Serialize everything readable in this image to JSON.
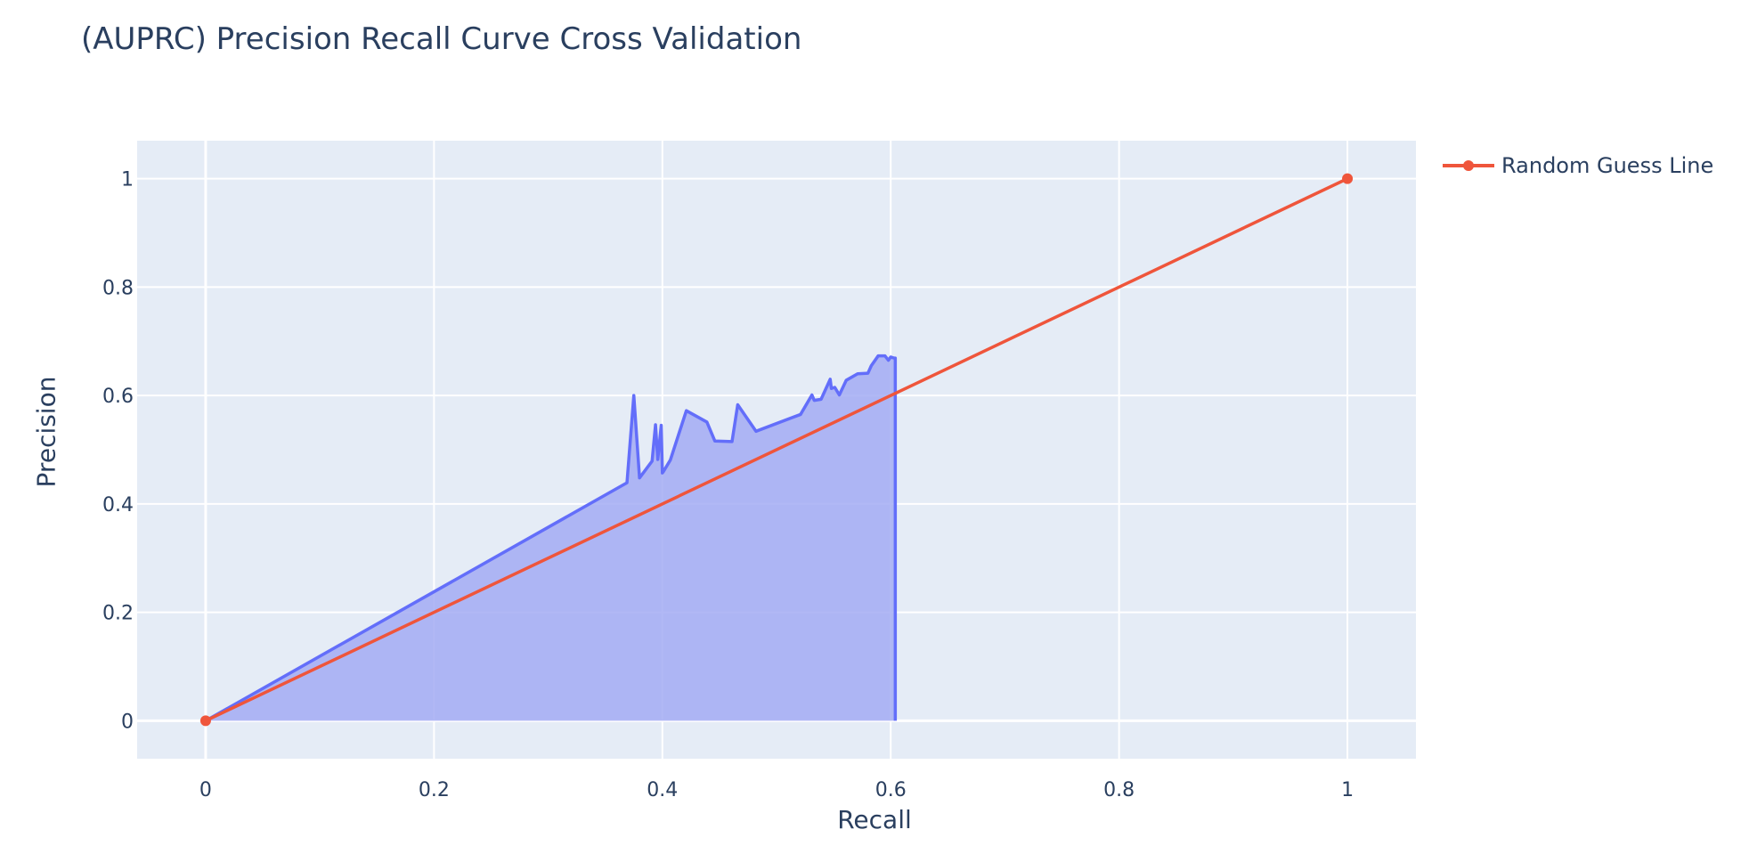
{
  "chart_data": {
    "type": "area",
    "title": "(AUPRC) Precision Recall Curve Cross Validation",
    "xlabel": "Recall",
    "ylabel": "Precision",
    "xlim": [
      -0.06,
      1.06
    ],
    "ylim": [
      -0.07,
      1.07
    ],
    "x_ticks": [
      0,
      0.2,
      0.4,
      0.6,
      0.8,
      1
    ],
    "x_tick_labels": [
      "0",
      "0.2",
      "0.4",
      "0.6",
      "0.8",
      "1"
    ],
    "y_ticks": [
      0,
      0.2,
      0.4,
      0.6,
      0.8,
      1
    ],
    "y_tick_labels": [
      "0",
      "0.2",
      "0.4",
      "0.6",
      "0.8",
      "1"
    ],
    "grid": true,
    "legend_position": "top-right",
    "series": [
      {
        "color": "#636efa",
        "fill": "tozeroy",
        "fill_color": "#a3acf3",
        "show_in_legend": false,
        "x": [
          0,
          0.369,
          0.375,
          0.38,
          0.391,
          0.394,
          0.396,
          0.399,
          0.4,
          0.401,
          0.407,
          0.421,
          0.439,
          0.446,
          0.461,
          0.466,
          0.482,
          0.521,
          0.531,
          0.533,
          0.539,
          0.547,
          0.548,
          0.551,
          0.555,
          0.561,
          0.571,
          0.58,
          0.583,
          0.589,
          0.595,
          0.598,
          0.6,
          0.603,
          0.604,
          0.604
        ],
        "y": [
          0,
          0.439,
          0.6,
          0.448,
          0.479,
          0.546,
          0.482,
          0.545,
          0.457,
          0.46,
          0.481,
          0.572,
          0.551,
          0.516,
          0.515,
          0.583,
          0.534,
          0.565,
          0.601,
          0.591,
          0.593,
          0.63,
          0.613,
          0.615,
          0.601,
          0.628,
          0.64,
          0.641,
          0.655,
          0.673,
          0.673,
          0.665,
          0.671,
          0.669,
          0.669,
          0
        ]
      },
      {
        "name": "Random Guess Line",
        "color": "#ef553b",
        "mode": "lines+markers",
        "x": [
          0,
          1
        ],
        "y": [
          0,
          1
        ]
      }
    ]
  }
}
